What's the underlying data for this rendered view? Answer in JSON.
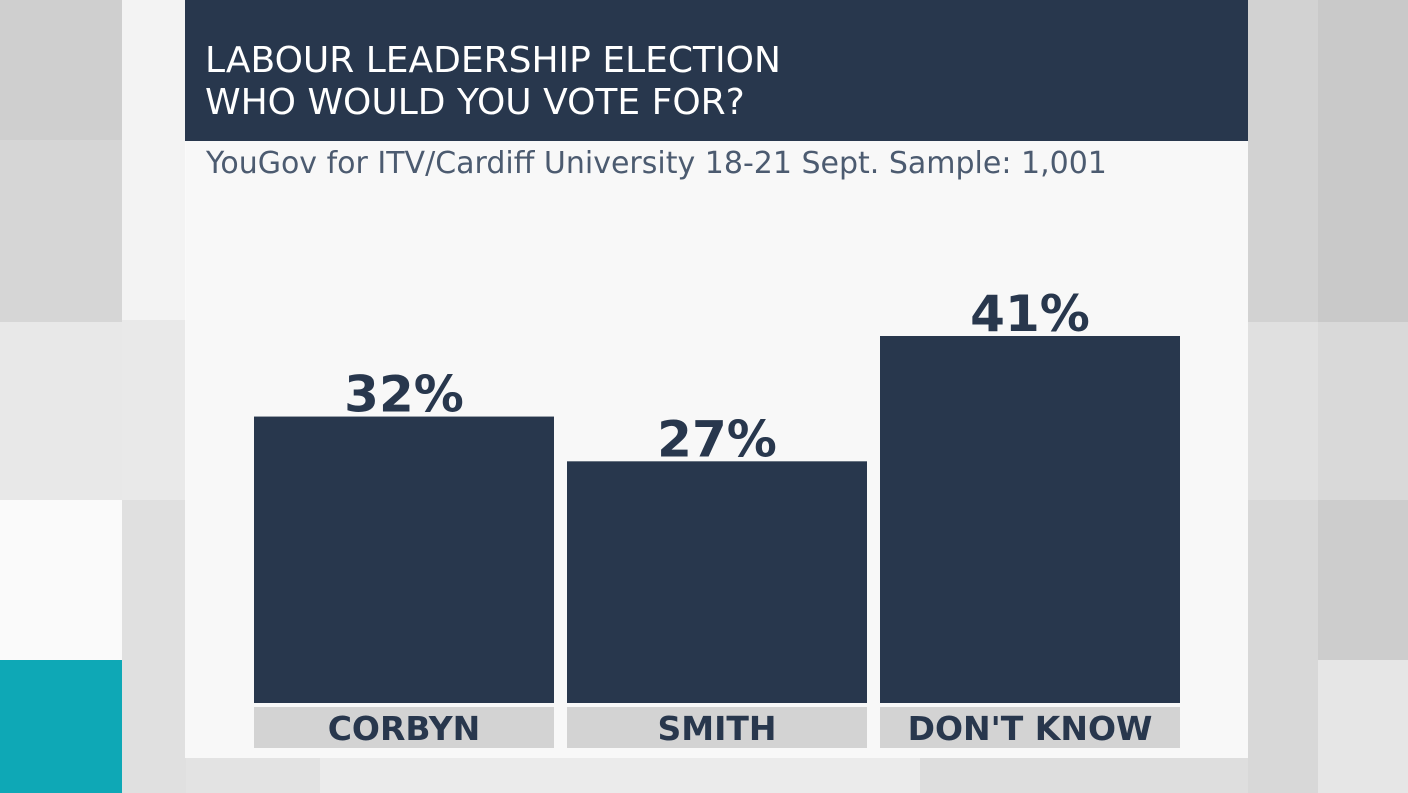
{
  "chart_data": {
    "type": "bar",
    "title_lines": [
      "LABOUR LEADERSHIP ELECTION",
      "WHO WOULD YOU VOTE FOR?"
    ],
    "subtitle": "YouGov for ITV/Cardiff University 18-21 Sept. Sample: 1,001",
    "categories": [
      "CORBYN",
      "SMITH",
      "DON'T KNOW"
    ],
    "values": [
      32,
      27,
      41
    ],
    "value_labels": [
      "32%",
      "27%",
      "41%"
    ],
    "ylim": [
      0,
      41
    ],
    "xlabel": "",
    "ylabel": "",
    "grid": false,
    "legend": "none"
  },
  "colors": {
    "bar": "#28374d",
    "category_box": "#d3d3d3",
    "accent": "#0ea8b6"
  }
}
